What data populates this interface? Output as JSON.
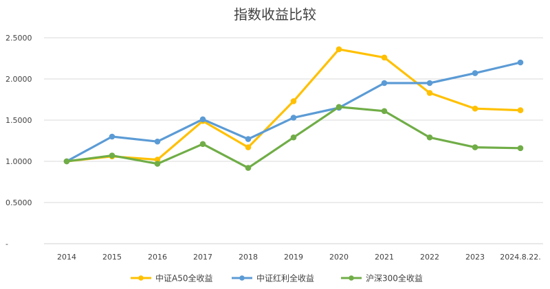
{
  "chart_data": {
    "type": "line",
    "title": "指数收益比较",
    "categories": [
      "2014",
      "2015",
      "2016",
      "2017",
      "2018",
      "2019",
      "2020",
      "2021",
      "2022",
      "2023",
      "2024.8.22."
    ],
    "series": [
      {
        "name": "中证A50全收益",
        "color": "#FFC000",
        "values": [
          1.0,
          1.06,
          1.02,
          1.49,
          1.17,
          1.73,
          2.36,
          2.26,
          1.83,
          1.64,
          1.62
        ]
      },
      {
        "name": "中证红利全收益",
        "color": "#5B9BD5",
        "values": [
          1.0,
          1.3,
          1.24,
          1.51,
          1.27,
          1.53,
          1.65,
          1.95,
          1.95,
          2.07,
          2.2
        ]
      },
      {
        "name": "沪深300全收益",
        "color": "#70AD47",
        "values": [
          1.0,
          1.07,
          0.97,
          1.21,
          0.92,
          1.29,
          1.66,
          1.61,
          1.29,
          1.17,
          1.16
        ]
      }
    ],
    "ylim": [
      0,
      2.5
    ],
    "yticks": [
      0,
      0.5,
      1.0,
      1.5,
      2.0,
      2.5
    ],
    "ytick_labels": [
      "-",
      "0.5000",
      "1.0000",
      "1.5000",
      "2.0000",
      "2.5000"
    ],
    "grid": true,
    "legend": "bottom"
  }
}
